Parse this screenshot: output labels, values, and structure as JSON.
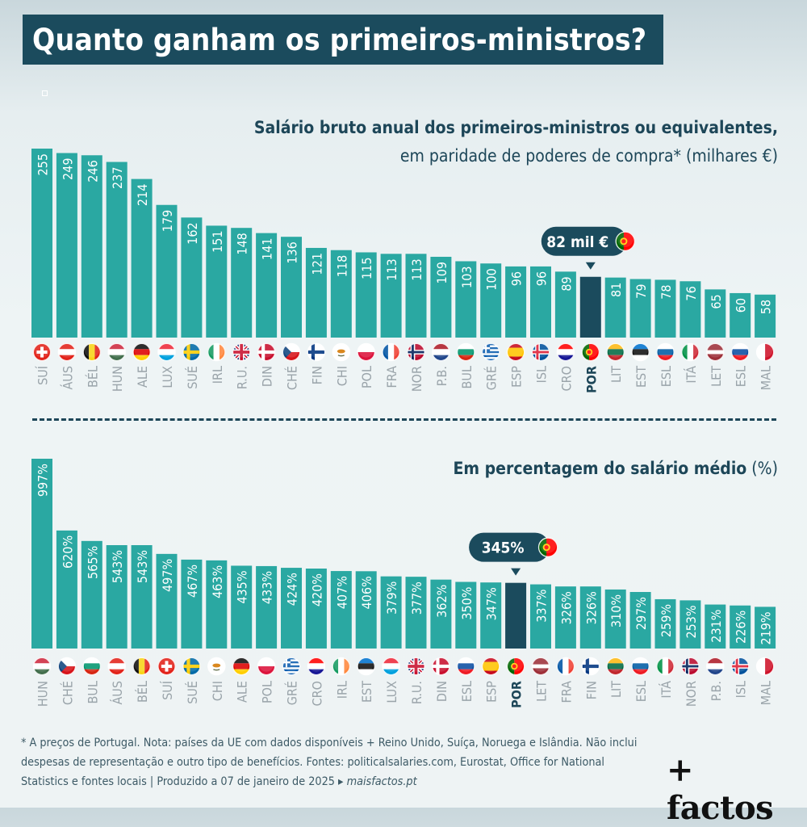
{
  "title": "Quanto ganham os primeiros-ministros?",
  "subtitle1_line1": "Salário bruto anual dos primeiros-ministros ou equivalentes,",
  "subtitle1_line2": "em paridade de poderes de compra* (milhares €)",
  "subtitle2_bold": "Em percentagem do salário médio",
  "subtitle2_rest": " (%)",
  "footnote": "* A preços de Portugal. Nota: países da UE com dados disponíveis + Reino Unido, Suíça, Noruega e Islândia. Não inclui despesas de representação e outro tipo de benefícios. Fontes: politicalsalaries.com, Eurostat, Office for National Statistics e fontes locais  |  Produzido a 07 de janeiro de 2025 ",
  "footnote_link": "▸ maisfactos.pt",
  "logo": "+ factos",
  "colors": {
    "bar": "#2aa8a2",
    "highlight": "#1b4b5d",
    "text": "#1d4658",
    "bar_label": "#ffffff"
  },
  "chart_data": [
    {
      "type": "bar",
      "title": "Salário bruto anual dos primeiros-ministros ou equivalentes, em paridade de poderes de compra* (milhares €)",
      "categories": [
        "SUÍ",
        "ÁUS",
        "BÉL",
        "HUN",
        "ALE",
        "LUX",
        "SUÉ",
        "IRL",
        "R.U.",
        "DIN",
        "CHÉ",
        "FIN",
        "CHI",
        "POL",
        "FRA",
        "NOR",
        "P.B.",
        "BUL",
        "GRÉ",
        "ESP",
        "ISL",
        "CRO",
        "POR",
        "LIT",
        "EST",
        "ESL",
        "ITÁ",
        "LET",
        "ESL",
        "MAL"
      ],
      "values": [
        255,
        249,
        246,
        237,
        214,
        179,
        162,
        151,
        148,
        141,
        136,
        121,
        118,
        115,
        113,
        113,
        109,
        103,
        100,
        96,
        96,
        89,
        82,
        81,
        79,
        78,
        76,
        65,
        60,
        58
      ],
      "labels": [
        "255",
        "249",
        "246",
        "237",
        "214",
        "179",
        "162",
        "151",
        "148",
        "141",
        "136",
        "121",
        "118",
        "115",
        "113",
        "113",
        "109",
        "103",
        "100",
        "96",
        "96",
        "89",
        "",
        "81",
        "79",
        "78",
        "76",
        "65",
        "60",
        "58"
      ],
      "flags": [
        "ch",
        "at",
        "be",
        "hu",
        "de",
        "lu",
        "se",
        "ie",
        "gb",
        "dk",
        "cz",
        "fi",
        "cy",
        "pl",
        "fr",
        "no",
        "nl",
        "bg",
        "gr",
        "es",
        "is",
        "hr",
        "pt",
        "lt",
        "ee",
        "si",
        "it",
        "lv",
        "sk",
        "mt"
      ],
      "highlight_index": 22,
      "callout": "82 mil €",
      "ylim": [
        0,
        255
      ]
    },
    {
      "type": "bar",
      "title": "Em percentagem do salário médio (%)",
      "categories": [
        "HUN",
        "CHÉ",
        "BUL",
        "ÁUS",
        "BÉL",
        "SUÍ",
        "SUÉ",
        "CHI",
        "ALE",
        "POL",
        "GRÉ",
        "CRO",
        "IRL",
        "EST",
        "LUX",
        "R.U.",
        "DIN",
        "ESL",
        "ESP",
        "POR",
        "LET",
        "FRA",
        "FIN",
        "LIT",
        "ESL",
        "ITÁ",
        "NOR",
        "P.B.",
        "ISL",
        "MAL"
      ],
      "values": [
        997,
        620,
        565,
        543,
        543,
        497,
        467,
        463,
        435,
        433,
        424,
        420,
        407,
        406,
        379,
        377,
        362,
        350,
        347,
        345,
        337,
        326,
        326,
        310,
        297,
        259,
        253,
        231,
        226,
        219
      ],
      "labels": [
        "997%",
        "620%",
        "565%",
        "543%",
        "543%",
        "497%",
        "467%",
        "463%",
        "435%",
        "433%",
        "424%",
        "420%",
        "407%",
        "406%",
        "379%",
        "377%",
        "362%",
        "350%",
        "347%",
        "",
        "337%",
        "326%",
        "326%",
        "310%",
        "297%",
        "259%",
        "253%",
        "231%",
        "226%",
        "219%"
      ],
      "flags": [
        "hu",
        "cz",
        "bg",
        "at",
        "be",
        "ch",
        "se",
        "cy",
        "de",
        "pl",
        "gr",
        "hr",
        "ie",
        "ee",
        "lu",
        "gb",
        "dk",
        "sk",
        "es",
        "pt",
        "lv",
        "fr",
        "fi",
        "lt",
        "si",
        "it",
        "no",
        "nl",
        "is",
        "mt"
      ],
      "highlight_index": 19,
      "callout": "345%",
      "ylim": [
        0,
        997
      ]
    }
  ]
}
